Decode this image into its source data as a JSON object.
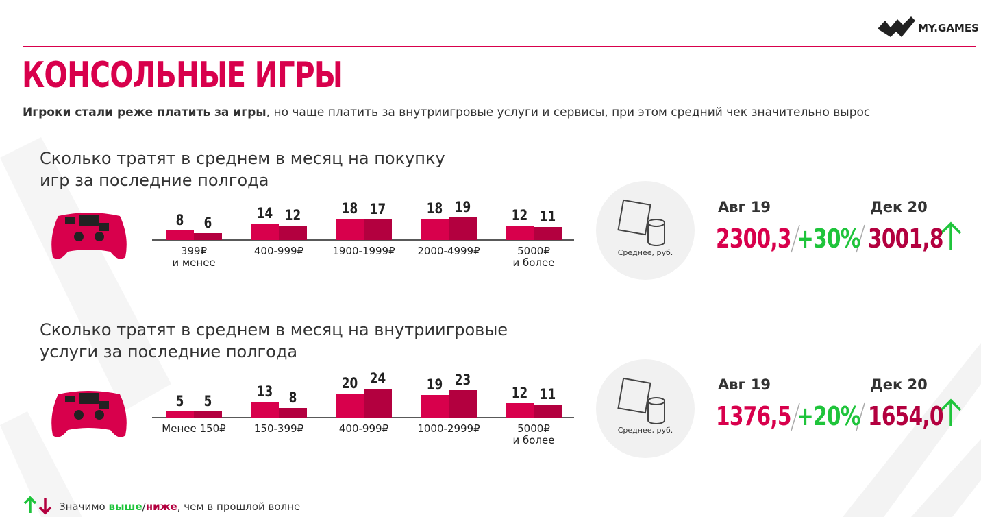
{
  "header": {
    "title": "КОНСОЛЬНЫЕ ИГРЫ",
    "subtitle_bold": "Игроки стали реже платить за игры",
    "subtitle_rest": ", но чаще платить за внутриигровые услуги и сервисы, при этом средний чек значительно вырос",
    "logo": "MY.GAMES"
  },
  "chart_data": [
    {
      "type": "bar",
      "title": "Сколько тратят в среднем в месяц на покупку\nигр за последние полгода",
      "categories": [
        "399₽\nи менее",
        "400-999₽",
        "1900-1999₽",
        "2000-4999₽",
        "5000₽\nи более"
      ],
      "series": [
        {
          "color": "#d8004c",
          "values": [
            8,
            14,
            18,
            18,
            12
          ]
        },
        {
          "color": "#b3003f",
          "values": [
            6,
            12,
            17,
            19,
            11
          ]
        }
      ]
    },
    {
      "type": "bar",
      "title": "Сколько тратят в среднем в месяц на внутриигровые\nуслуги за последние полгода",
      "categories": [
        "Менее 150₽",
        "150-399₽",
        "400-999₽",
        "1000-2999₽",
        "5000₽\nи более"
      ],
      "series": [
        {
          "color": "#d8004c",
          "values": [
            5,
            13,
            20,
            19,
            12
          ]
        },
        {
          "color": "#b3003f",
          "values": [
            5,
            8,
            24,
            23,
            11
          ]
        }
      ]
    }
  ],
  "summaries": [
    {
      "caption": "Среднее, руб.",
      "period_before": "Авг 19",
      "period_after": "Дек 20",
      "before": "2300,3",
      "change": "+30%",
      "after": "3001,8"
    },
    {
      "caption": "Среднее, руб.",
      "period_before": "Авг 19",
      "period_after": "Дек 20",
      "before": "1376,5",
      "change": "+20%",
      "after": "1654,0"
    }
  ],
  "footer": {
    "lead": "Значимо ",
    "higher": "выше",
    "sep": "/",
    "lower": "ниже",
    "rest": ", чем в прошлой волне"
  }
}
